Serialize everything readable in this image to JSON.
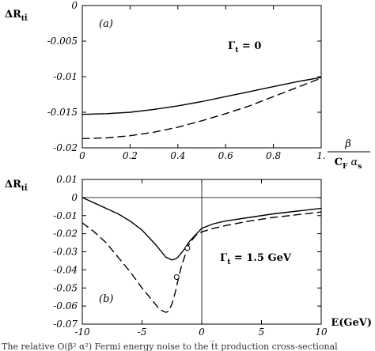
{
  "caption_fragment": "The relative O(β² α²) Fermi energy noise to the t̅t production cross-sectional",
  "chart_data": [
    {
      "type": "line",
      "panel_label": "(a)",
      "annotation": "Γt = 0",
      "ylabel": "ΔR_tt̅",
      "xlabel": "β / (CF αs)",
      "xlim": [
        0,
        1
      ],
      "ylim": [
        -0.02,
        0
      ],
      "x_ticks": [
        0,
        0.2,
        0.4,
        0.6,
        0.8,
        1
      ],
      "x_tick_labels": [
        "0",
        "0.2",
        "0.4",
        "0.6",
        "0.8",
        "1."
      ],
      "y_ticks": [
        0,
        -0.005,
        -0.01,
        -0.015,
        -0.02
      ],
      "y_tick_labels": [
        "0",
        "-0.005",
        "-0.01",
        "-0.015",
        "-0.02"
      ],
      "series": [
        {
          "style": "solid",
          "x": [
            0,
            0.1,
            0.2,
            0.3,
            0.4,
            0.5,
            0.6,
            0.7,
            0.8,
            0.9,
            1.0
          ],
          "y": [
            -0.0153,
            -0.0152,
            -0.015,
            -0.0146,
            -0.0141,
            -0.0135,
            -0.0128,
            -0.0121,
            -0.0114,
            -0.0107,
            -0.0101
          ]
        },
        {
          "style": "dashed",
          "x": [
            0,
            0.1,
            0.2,
            0.3,
            0.4,
            0.5,
            0.6,
            0.7,
            0.8,
            0.9,
            1.0
          ],
          "y": [
            -0.0187,
            -0.0186,
            -0.0183,
            -0.0178,
            -0.0171,
            -0.0162,
            -0.0152,
            -0.0141,
            -0.0128,
            -0.0115,
            -0.0102
          ]
        }
      ]
    },
    {
      "type": "line",
      "panel_label": "(b)",
      "annotation": "Γt = 1.5 GeV",
      "ylabel": "ΔR_tt̅",
      "xlabel": "E(GeV)",
      "xlim": [
        -10,
        10
      ],
      "ylim": [
        -0.07,
        0.01
      ],
      "x_ticks": [
        -10,
        -5,
        0,
        5,
        10
      ],
      "x_tick_labels": [
        "-10",
        "-5",
        "0",
        "5",
        "10"
      ],
      "y_ticks": [
        0.01,
        0,
        -0.01,
        -0.02,
        -0.03,
        -0.04,
        -0.05,
        -0.06,
        -0.07
      ],
      "y_tick_labels": [
        "0.01",
        "0",
        "-0.01",
        "-0.02",
        "-0.03",
        "-0.04",
        "-0.05",
        "-0.06",
        "-0.07"
      ],
      "markers": [
        {
          "x": -1.2,
          "y": -0.028,
          "shape": "open-circle"
        },
        {
          "x": -2.1,
          "y": -0.044,
          "shape": "open-circle"
        }
      ],
      "series": [
        {
          "style": "solid",
          "x": [
            -10,
            -9,
            -8,
            -7,
            -6,
            -5,
            -4,
            -3.5,
            -3,
            -2.5,
            -2.2,
            -2,
            -1.5,
            -1,
            0,
            1,
            2,
            4,
            6,
            8,
            10
          ],
          "y": [
            0.0,
            -0.003,
            -0.006,
            -0.009,
            -0.013,
            -0.018,
            -0.025,
            -0.029,
            -0.033,
            -0.0345,
            -0.034,
            -0.033,
            -0.029,
            -0.024,
            -0.017,
            -0.0145,
            -0.013,
            -0.011,
            -0.009,
            -0.0075,
            -0.006
          ]
        },
        {
          "style": "dashed",
          "x": [
            -10,
            -9,
            -8,
            -7,
            -6,
            -5,
            -4.5,
            -4,
            -3.5,
            -3,
            -2.8,
            -2.5,
            -2.2,
            -2,
            -1.7,
            -1.4,
            -1.2,
            -1,
            -0.5,
            0,
            1,
            2,
            4,
            6,
            8,
            10
          ],
          "y": [
            -0.014,
            -0.019,
            -0.025,
            -0.033,
            -0.041,
            -0.05,
            -0.054,
            -0.058,
            -0.062,
            -0.0635,
            -0.063,
            -0.059,
            -0.052,
            -0.046,
            -0.038,
            -0.032,
            -0.028,
            -0.025,
            -0.021,
            -0.019,
            -0.017,
            -0.0155,
            -0.013,
            -0.011,
            -0.0095,
            -0.008
          ]
        }
      ]
    }
  ]
}
